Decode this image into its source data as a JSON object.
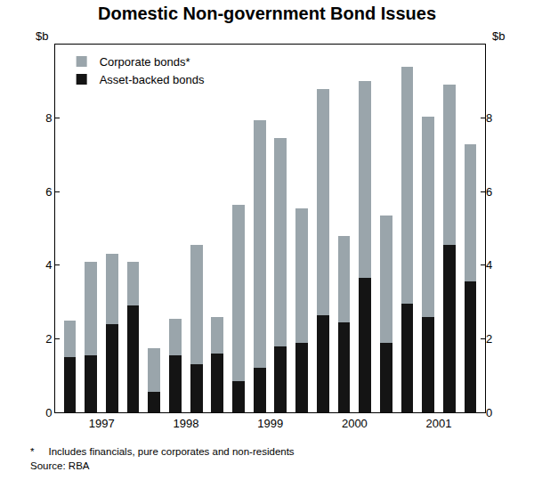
{
  "chart_data": {
    "type": "bar",
    "title": "Domestic Non-government Bond Issues",
    "ylabel": "$b",
    "categories": [
      null,
      "1997",
      null,
      null,
      null,
      "1998",
      null,
      null,
      null,
      "1999",
      null,
      null,
      null,
      "2000",
      null,
      null,
      null,
      "2001",
      null,
      null
    ],
    "series": [
      {
        "name": "Asset-backed bonds",
        "color": "#141414",
        "values": [
          1.5,
          1.55,
          2.4,
          2.9,
          0.55,
          1.55,
          1.3,
          1.6,
          0.85,
          1.2,
          1.8,
          1.9,
          2.65,
          2.45,
          3.65,
          1.9,
          2.95,
          2.6,
          4.55,
          3.55
        ]
      },
      {
        "name": "Corporate bonds*",
        "color": "#9aa5ab",
        "values": [
          1.0,
          2.55,
          1.9,
          1.2,
          1.2,
          1.0,
          3.25,
          1.0,
          4.8,
          6.75,
          5.65,
          3.65,
          6.15,
          2.35,
          5.35,
          3.45,
          6.45,
          5.45,
          4.35,
          3.75
        ]
      }
    ],
    "stacked": true,
    "ylim": [
      0,
      10
    ],
    "yticks": [
      0,
      2,
      4,
      6,
      8
    ],
    "grid": false,
    "legend": "top left",
    "notes": [
      "*     Includes financials, pure corporates and non-residents",
      "Source: RBA"
    ]
  }
}
